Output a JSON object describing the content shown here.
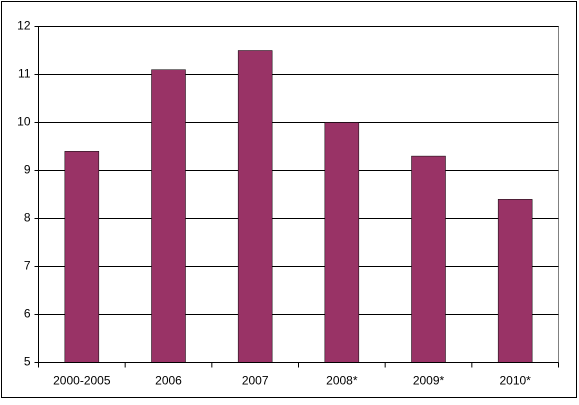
{
  "chart_data": {
    "type": "bar",
    "categories": [
      "2000-2005",
      "2006",
      "2007",
      "2008*",
      "2009*",
      "2010*"
    ],
    "values": [
      9.4,
      11.1,
      11.5,
      10.0,
      9.3,
      8.4
    ],
    "color": "#993366",
    "ylim": [
      5,
      12
    ],
    "yticks": [
      5,
      6,
      7,
      8,
      9,
      10,
      11,
      12
    ],
    "grid": true
  }
}
